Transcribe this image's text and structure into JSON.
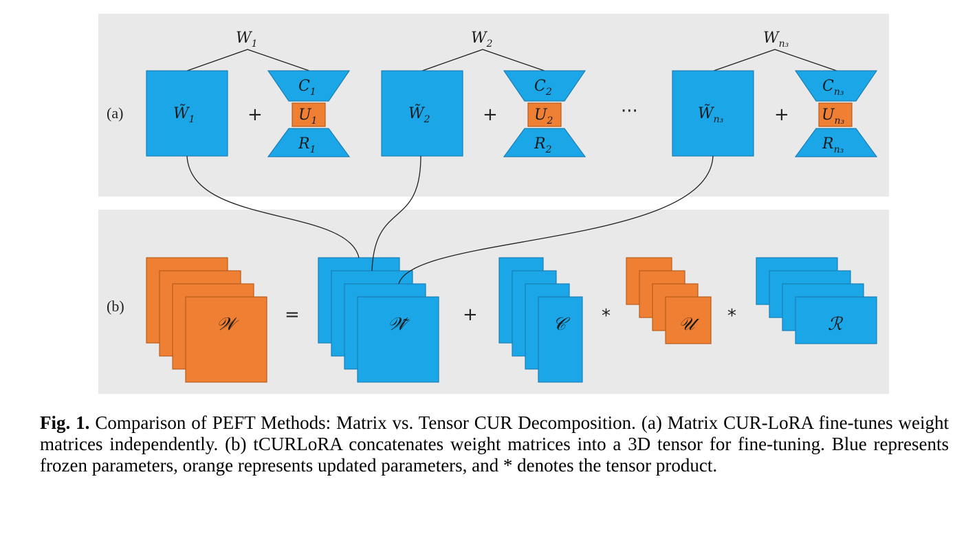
{
  "panel_a": {
    "label": "(a)",
    "blocks": [
      {
        "W": "W",
        "W_sub": "1",
        "Wt_sub": "1",
        "C_sub": "1",
        "U_sub": "1",
        "R_sub": "1"
      },
      {
        "W": "W",
        "W_sub": "2",
        "Wt_sub": "2",
        "C_sub": "2",
        "U_sub": "2",
        "R_sub": "2"
      },
      {
        "W": "W",
        "W_sub": "n₃",
        "Wt_sub": "n₃",
        "C_sub": "n₃",
        "U_sub": "n₃",
        "R_sub": "n₃"
      }
    ],
    "plus": "+",
    "ellipsis": "···",
    "C": "C",
    "U": "U",
    "R": "R",
    "W_tilde": "W̃"
  },
  "panel_b": {
    "label": "(b)",
    "W_tensor": "𝒲",
    "Wt_tensor": "𝒲̃",
    "C_tensor": "𝒞",
    "U_tensor": "𝒰",
    "R_tensor": "ℛ",
    "equals": "=",
    "plus": "+",
    "star1": "*",
    "star2": "*"
  },
  "caption": {
    "lead": "Fig. 1.",
    "text": " Comparison of PEFT Methods: Matrix vs. Tensor CUR Decomposition. (a) Matrix CUR-LoRA fine-tunes weight matrices independently. (b) tCURLoRA concatenates weight matrices into a 3D tensor for fine-tuning. Blue represents frozen parameters, orange represents updated parameters, and * denotes the tensor product."
  },
  "colors": {
    "frozen": "#1ba6e8",
    "updated": "#ef7f32",
    "panel": "#e9e9e9"
  }
}
